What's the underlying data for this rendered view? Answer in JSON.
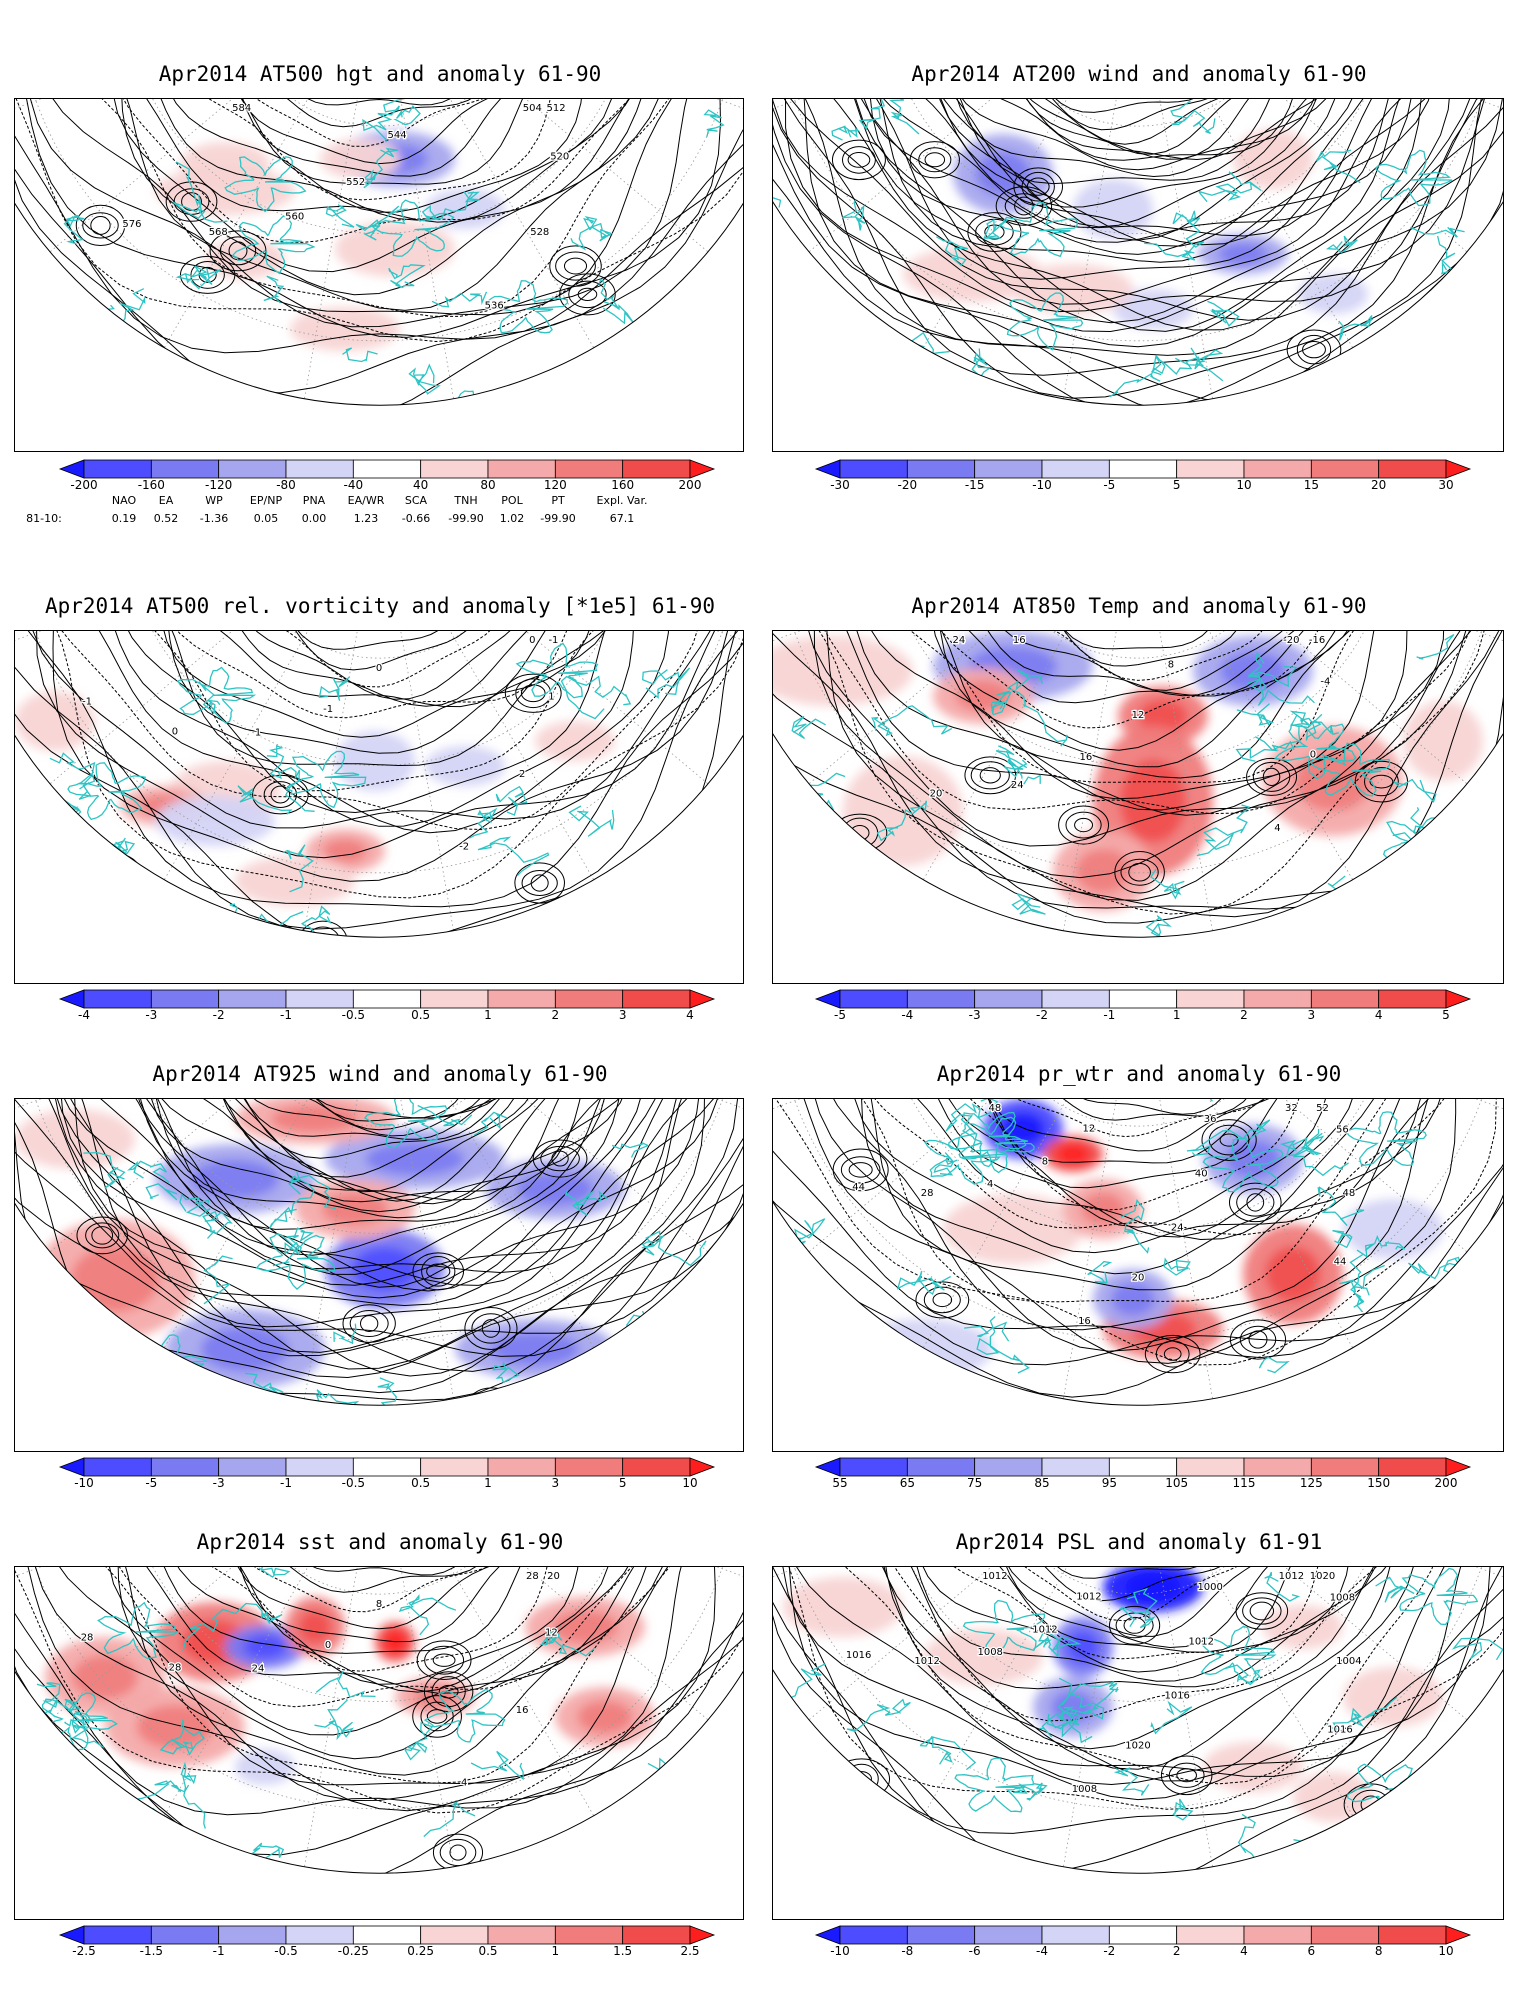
{
  "panels": [
    {
      "id": "hgt500",
      "title": "Apr2014 AT500 hgt and anomaly 61-90",
      "contour_labels": [
        "504",
        "512",
        "520",
        "528",
        "536",
        "544",
        "552",
        "560",
        "568",
        "576",
        "584"
      ],
      "colorbar": [
        "-200",
        "-160",
        "-120",
        "-80",
        "-40",
        "40",
        "80",
        "120",
        "160",
        "200"
      ]
    },
    {
      "id": "wind200",
      "title": "Apr2014 AT200 wind and anomaly 61-90",
      "contour_labels": [],
      "colorbar": [
        "-30",
        "-20",
        "-15",
        "-10",
        "-5",
        "5",
        "10",
        "15",
        "20",
        "30"
      ]
    },
    {
      "id": "vort500",
      "title": "Apr2014 AT500 rel. vorticity and anomaly [*1e5] 61-90",
      "contour_labels": [
        "0",
        "-1",
        "1",
        "2",
        "-2",
        "0",
        "-1",
        "1",
        "0",
        "-1"
      ],
      "colorbar": [
        "-4",
        "-3",
        "-2",
        "-1",
        "-0.5",
        "0.5",
        "1",
        "2",
        "3",
        "4"
      ]
    },
    {
      "id": "temp850",
      "title": "Apr2014 AT850 Temp and anomaly 61-90",
      "contour_labels": [
        "-20",
        "-16",
        "-4",
        "0",
        "4",
        "8",
        "12",
        "16",
        "24",
        "20",
        "16",
        "24"
      ],
      "colorbar": [
        "-5",
        "-4",
        "-3",
        "-2",
        "-1",
        "1",
        "2",
        "3",
        "4",
        "5"
      ]
    },
    {
      "id": "wind925",
      "title": "Apr2014 AT925 wind and anomaly 61-90",
      "contour_labels": [],
      "colorbar": [
        "-10",
        "-5",
        "-3",
        "-1",
        "-0.5",
        "0.5",
        "1",
        "3",
        "5",
        "10"
      ]
    },
    {
      "id": "prwtr",
      "title": "Apr2014 pr_wtr and anomaly 61-90",
      "contour_labels": [
        "32",
        "52",
        "56",
        "48",
        "44",
        "36",
        "40",
        "24",
        "20",
        "16",
        "12",
        "8",
        "4",
        "28",
        "44",
        "48"
      ],
      "colorbar": [
        "55",
        "65",
        "75",
        "85",
        "95",
        "105",
        "115",
        "125",
        "150",
        "200"
      ]
    },
    {
      "id": "sst",
      "title": "Apr2014 sst and anomaly 61-90",
      "contour_labels": [
        "28",
        "20",
        "12",
        "16",
        "4",
        "8",
        "0",
        "24",
        "28",
        "28"
      ],
      "colorbar": [
        "-2.5",
        "-1.5",
        "-1",
        "-0.5",
        "-0.25",
        "0.25",
        "0.5",
        "1",
        "1.5",
        "2.5"
      ]
    },
    {
      "id": "psl",
      "title": "Apr2014 PSL and anomaly 61-91",
      "contour_labels": [
        "1012",
        "1020",
        "1008",
        "1004",
        "1016",
        "1000",
        "1012",
        "1016",
        "1020",
        "1008",
        "1012",
        "1012",
        "1008",
        "1012",
        "1016",
        "1012"
      ],
      "colorbar": [
        "-10",
        "-8",
        "-6",
        "-4",
        "-2",
        "2",
        "4",
        "6",
        "8",
        "10"
      ]
    }
  ],
  "colors": {
    "coast": "#2ec4c4",
    "blues": [
      "#1a1aff",
      "#4d4dff",
      "#7a7af2",
      "#a6a6ee",
      "#d4d4f6"
    ],
    "reds": [
      "#f8d4d4",
      "#f4aaaa",
      "#f07c7c",
      "#f04c4c",
      "#ff1e1e"
    ]
  },
  "teleconnections": {
    "headers": [
      "NAO",
      "EA",
      "WP",
      "EP/NP",
      "PNA",
      "EA/WR",
      "SCA",
      "TNH",
      "POL",
      "PT",
      "Expl. Var."
    ],
    "row_label": "81-10:",
    "values": [
      "0.19",
      "0.52",
      "-1.36",
      "0.05",
      "0.00",
      "1.23",
      "-0.66",
      "-99.90",
      "1.02",
      "-99.90",
      "67.1"
    ]
  }
}
